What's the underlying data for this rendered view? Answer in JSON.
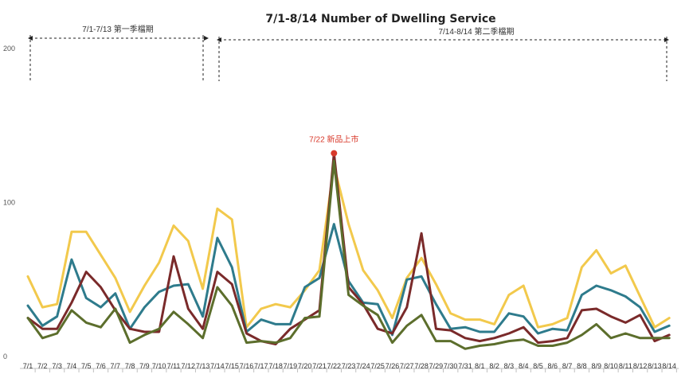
{
  "chart_data": {
    "type": "line",
    "title": "7/1-8/14 Number of Dwelling Service",
    "ylim": [
      0,
      200
    ],
    "yticks": [
      0,
      100,
      200
    ],
    "grid": false,
    "legend": "none",
    "categories": [
      "7/1",
      "7/2",
      "7/3",
      "7/4",
      "7/5",
      "7/6",
      "7/7",
      "7/8",
      "7/9",
      "7/10",
      "7/11",
      "7/12",
      "7/13",
      "7/14",
      "7/15",
      "7/16",
      "7/17",
      "7/18",
      "7/19",
      "7/20",
      "7/21",
      "7/22",
      "7/23",
      "7/24",
      "7/25",
      "7/26",
      "7/27",
      "7/28",
      "7/29",
      "7/30",
      "7/31",
      "8/1",
      "8/2",
      "8/3",
      "8/4",
      "8/5",
      "8/6",
      "8/7",
      "8/8",
      "8/9",
      "8/10",
      "8/11",
      "8/12",
      "8/13",
      "8/14"
    ],
    "series": [
      {
        "color": "#f2c94c",
        "values": [
          52,
          32,
          34,
          81,
          81,
          66,
          51,
          29,
          46,
          61,
          85,
          75,
          44,
          96,
          89,
          19,
          31,
          34,
          32,
          43,
          56,
          124,
          86,
          56,
          43,
          25,
          51,
          64,
          47,
          28,
          24,
          24,
          21,
          40,
          46,
          19,
          21,
          25,
          58,
          69,
          54,
          59,
          39,
          19,
          25
        ]
      },
      {
        "color": "#2e7b8c",
        "values": [
          33,
          20,
          26,
          63,
          38,
          32,
          41,
          18,
          32,
          42,
          46,
          47,
          26,
          77,
          58,
          16,
          24,
          21,
          21,
          45,
          51,
          86,
          49,
          35,
          34,
          14,
          50,
          52,
          34,
          18,
          19,
          16,
          16,
          28,
          26,
          15,
          18,
          17,
          40,
          46,
          43,
          39,
          32,
          16,
          20
        ]
      },
      {
        "color": "#7a2a2a",
        "values": [
          25,
          18,
          18,
          35,
          55,
          45,
          30,
          18,
          16,
          16,
          65,
          31,
          18,
          55,
          47,
          15,
          10,
          8,
          18,
          24,
          30,
          132,
          45,
          34,
          18,
          15,
          32,
          80,
          18,
          17,
          12,
          10,
          12,
          15,
          19,
          9,
          10,
          12,
          30,
          31,
          26,
          22,
          27,
          10,
          14
        ]
      },
      {
        "color": "#5c6e2c",
        "values": [
          25,
          12,
          15,
          30,
          22,
          19,
          31,
          9,
          14,
          18,
          29,
          21,
          12,
          45,
          33,
          9,
          10,
          9,
          12,
          25,
          26,
          127,
          40,
          33,
          27,
          9,
          20,
          27,
          10,
          10,
          5,
          7,
          8,
          10,
          11,
          7,
          7,
          9,
          14,
          21,
          12,
          15,
          12,
          12,
          12
        ]
      }
    ],
    "annotations": [
      {
        "text": "7/22 新品上市",
        "x": "7/22",
        "y": 132,
        "color": "#d8392b"
      }
    ],
    "periods": [
      {
        "label": "7/1-7/13 第一季檔期",
        "from": "7/1",
        "to": "7/13"
      },
      {
        "label": "7/14-8/14 第二季檔期",
        "from": "7/14",
        "to": "8/14"
      }
    ]
  }
}
